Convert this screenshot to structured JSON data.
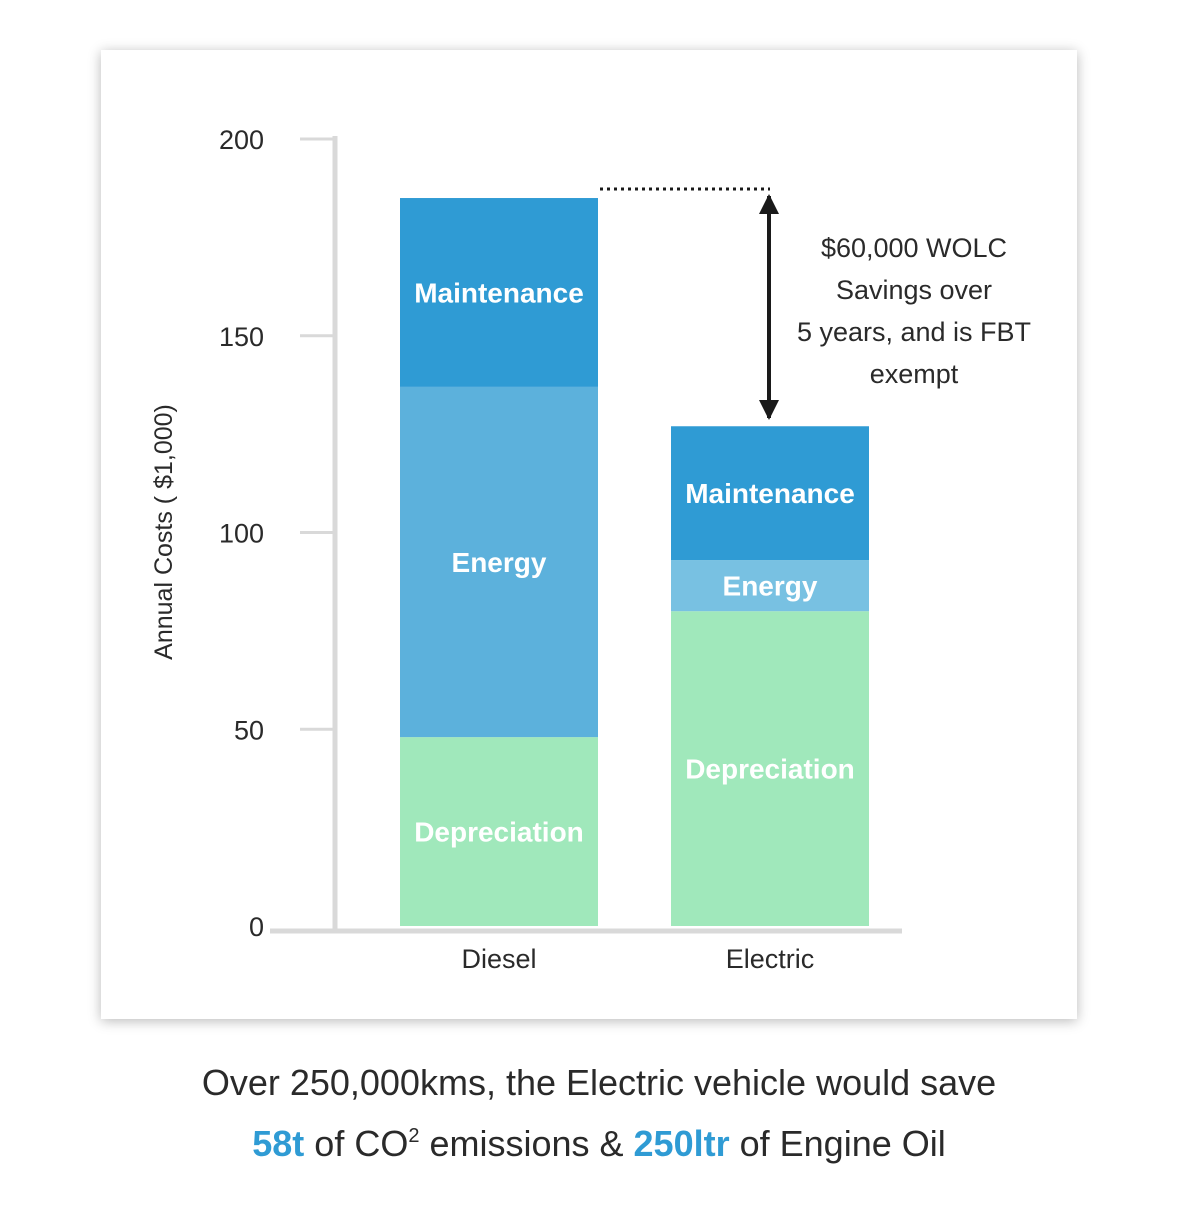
{
  "chart_data": {
    "type": "bar",
    "stacked": true,
    "categories": [
      "Diesel",
      "Electric"
    ],
    "series": [
      {
        "name": "Depreciation",
        "values": [
          48,
          80
        ],
        "color": "#a0e8bb"
      },
      {
        "name": "Energy",
        "values": [
          89,
          13
        ],
        "colors": [
          "#5cb1dc",
          "#78c1e2"
        ]
      },
      {
        "name": "Maintenance",
        "values": [
          48,
          34
        ],
        "color": "#2f9bd4"
      }
    ],
    "ylabel": "Annual Costs ( $1,000)",
    "xlabel": "",
    "ylim": [
      0,
      200
    ],
    "yticks": [
      "0",
      "50",
      "100",
      "150",
      "200"
    ],
    "grid": false,
    "annotation": [
      "$60,000 WOLC",
      "Savings over",
      "5 years, and is FBT",
      "exempt"
    ]
  },
  "caption": {
    "line1": "Over 250,000kms, the Electric vehicle would save",
    "highlight1": "58t",
    "text_a": " of CO",
    "superscript": "2",
    "text_b": " emissions & ",
    "highlight2": "250ltr",
    "text_c": " of Engine Oil"
  },
  "colors": {
    "accent": "#2f9bd4",
    "axis": "#d9d9d9",
    "text": "#2a2a2a"
  }
}
